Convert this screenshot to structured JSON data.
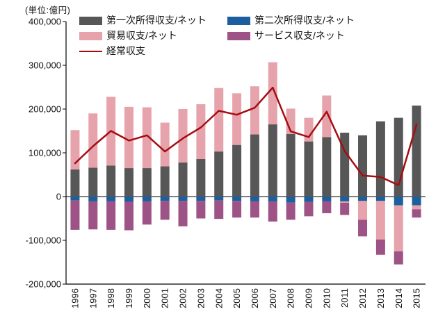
{
  "unit_label": "(単位:億円)",
  "legend": {
    "items": [
      {
        "label": "第一次所得収支/ネット",
        "color": "#575757",
        "type": "box"
      },
      {
        "label": "第二次所得収支/ネット",
        "color": "#1c5f9e",
        "type": "box"
      },
      {
        "label": "貿易収支/ネット",
        "color": "#e6a3ab",
        "type": "box"
      },
      {
        "label": "サービス収支/ネット",
        "color": "#9d5386",
        "type": "box"
      },
      {
        "label": "経常収支",
        "color": "#a50d12",
        "type": "line"
      }
    ]
  },
  "chart_data": {
    "type": "bar",
    "subtype": "stacked-bar-with-line-overlay",
    "title": "",
    "unit": "億円",
    "grid": false,
    "legend_position": "top-inside",
    "categories": [
      "1996",
      "1997",
      "1998",
      "1999",
      "2000",
      "2001",
      "2002",
      "2003",
      "2004",
      "2005",
      "2006",
      "2007",
      "2008",
      "2009",
      "2010",
      "2011",
      "2012",
      "2013",
      "2014",
      "2015"
    ],
    "series": [
      {
        "name": "第一次所得収支/ネット",
        "type": "bar",
        "color": "#575757",
        "values": [
          62000,
          66000,
          71000,
          65000,
          65000,
          69000,
          78000,
          86000,
          103000,
          118000,
          142000,
          165000,
          143000,
          126000,
          136000,
          146000,
          140000,
          172000,
          180000,
          208000
        ]
      },
      {
        "name": "第二次所得収支/ネット",
        "type": "bar",
        "color": "#1c5f9e",
        "values": [
          -9000,
          -11000,
          -11000,
          -12000,
          -11000,
          -10000,
          -10000,
          -10000,
          -9000,
          -10000,
          -11000,
          -11000,
          -14000,
          -12000,
          -11000,
          -11000,
          -10000,
          -10000,
          -20000,
          -20000
        ]
      },
      {
        "name": "貿易収支/ネット",
        "type": "bar",
        "color": "#e6a3ab",
        "values": [
          90000,
          124000,
          157000,
          140000,
          139000,
          100000,
          122000,
          125000,
          145000,
          118000,
          110000,
          142000,
          58000,
          54000,
          95000,
          -3000,
          -43000,
          -88000,
          -105000,
          -9000
        ]
      },
      {
        "name": "サービス収支/ネット",
        "type": "bar",
        "color": "#9d5386",
        "values": [
          -67000,
          -64000,
          -65000,
          -65000,
          -53000,
          -43000,
          -58000,
          -40000,
          -42000,
          -38000,
          -37000,
          -46000,
          -39000,
          -33000,
          -27000,
          -28000,
          -38000,
          -35000,
          -30000,
          -19000
        ]
      },
      {
        "name": "経常収支",
        "type": "line",
        "color": "#a50d12",
        "values": [
          76000,
          115000,
          150000,
          128000,
          140000,
          103000,
          133000,
          158000,
          196000,
          187000,
          203000,
          249000,
          149000,
          136000,
          194000,
          104000,
          48000,
          45000,
          26000,
          165000
        ]
      }
    ],
    "ylim": [
      -200000,
      400000
    ],
    "yticks": [
      {
        "value": 400000,
        "label": "400,000"
      },
      {
        "value": 300000,
        "label": "300,000"
      },
      {
        "value": 200000,
        "label": "200,000"
      },
      {
        "value": 100000,
        "label": "100,000"
      },
      {
        "value": 0,
        "label": "0"
      },
      {
        "value": -100000,
        "label": "-100,000"
      },
      {
        "value": -200000,
        "label": "-200,000"
      }
    ]
  }
}
